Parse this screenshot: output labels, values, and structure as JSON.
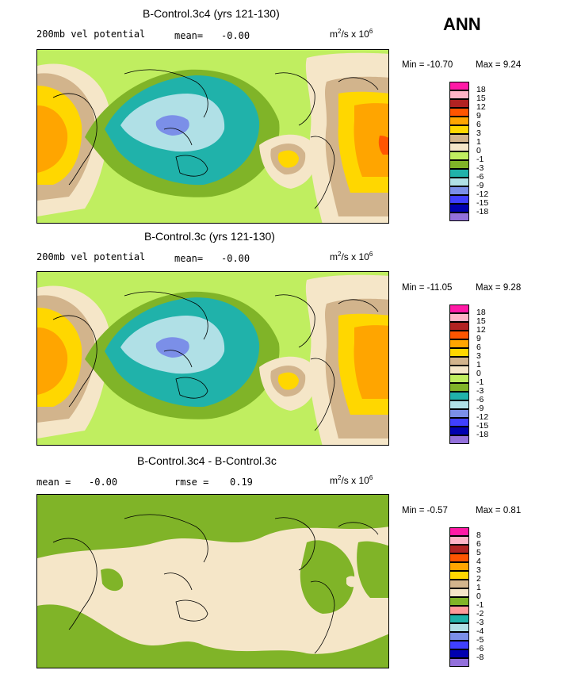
{
  "season": "ANN",
  "panels": [
    {
      "id": "p1",
      "title": "B-Control.3c4 (yrs 121-130)",
      "left_label": "200mb vel potential",
      "stat_label": "mean=",
      "stat_value": "-0.00",
      "stat2_label": "",
      "stat2_value": "",
      "units": "m",
      "units_sup": "2",
      "units_mid": "/s x 10",
      "units_sup2": "6",
      "min_text": "Min = -10.70",
      "max_text": "Max =   9.24",
      "colorbar": {
        "labels": [
          "18",
          "15",
          "12",
          "9",
          "6",
          "3",
          "1",
          "0",
          "-1",
          "-3",
          "-6",
          "-9",
          "-12",
          "-15",
          "-18"
        ],
        "colors": [
          "#ff1aa6",
          "#ffb3c6",
          "#b22222",
          "#ff5500",
          "#ffa500",
          "#ffd700",
          "#d2b48c",
          "#f5e6c8",
          "#c0ee60",
          "#80b428",
          "#20b2aa",
          "#b0e0e6",
          "#7b8fe8",
          "#4040ff",
          "#0000b0",
          "#9370db"
        ]
      }
    },
    {
      "id": "p2",
      "title": "B-Control.3c (yrs 121-130)",
      "left_label": "200mb vel potential",
      "stat_label": "mean=",
      "stat_value": "-0.00",
      "stat2_label": "",
      "stat2_value": "",
      "units": "m",
      "units_sup": "2",
      "units_mid": "/s x 10",
      "units_sup2": "6",
      "min_text": "Min = -11.05",
      "max_text": "Max =   9.28",
      "colorbar": {
        "labels": [
          "18",
          "15",
          "12",
          "9",
          "6",
          "3",
          "1",
          "0",
          "-1",
          "-3",
          "-6",
          "-9",
          "-12",
          "-15",
          "-18"
        ],
        "colors": [
          "#ff1aa6",
          "#ffb3c6",
          "#b22222",
          "#ff5500",
          "#ffa500",
          "#ffd700",
          "#d2b48c",
          "#f5e6c8",
          "#c0ee60",
          "#80b428",
          "#20b2aa",
          "#b0e0e6",
          "#7b8fe8",
          "#4040ff",
          "#0000b0",
          "#9370db"
        ]
      }
    },
    {
      "id": "p3",
      "title": "B-Control.3c4 - B-Control.3c",
      "left_label": "",
      "stat_label": "mean =",
      "stat_value": "-0.00",
      "stat2_label": "rmse =",
      "stat2_value": "0.19",
      "units": "m",
      "units_sup": "2",
      "units_mid": "/s x 10",
      "units_sup2": "6",
      "min_text": "Min = -0.57",
      "max_text": "Max =   0.81",
      "colorbar": {
        "labels": [
          "8",
          "6",
          "5",
          "4",
          "3",
          "2",
          "1",
          "0",
          "-1",
          "-2",
          "-3",
          "-4",
          "-5",
          "-6",
          "-8"
        ],
        "colors": [
          "#ff1aa6",
          "#ffb3c6",
          "#b22222",
          "#ff5500",
          "#ffa500",
          "#ffd700",
          "#d2b48c",
          "#f5e6c8",
          "#80b428",
          "#ff9999",
          "#20b2aa",
          "#b0e0e6",
          "#7b8fe8",
          "#4040ff",
          "#0000b0",
          "#9370db"
        ]
      }
    }
  ],
  "chart_data": {
    "type": "heatmap",
    "season": "ANN",
    "maps": [
      {
        "title": "B-Control.3c4 (yrs 121-130)",
        "field": "200mb vel potential",
        "units": "m^2/s x 10^6",
        "mean": -0.0,
        "min": -10.7,
        "max": 9.24,
        "levels": [
          -18,
          -15,
          -12,
          -9,
          -6,
          -3,
          -1,
          0,
          1,
          3,
          6,
          9,
          12,
          15,
          18
        ]
      },
      {
        "title": "B-Control.3c (yrs 121-130)",
        "field": "200mb vel potential",
        "units": "m^2/s x 10^6",
        "mean": -0.0,
        "min": -11.05,
        "max": 9.28,
        "levels": [
          -18,
          -15,
          -12,
          -9,
          -6,
          -3,
          -1,
          0,
          1,
          3,
          6,
          9,
          12,
          15,
          18
        ]
      },
      {
        "title": "B-Control.3c4 - B-Control.3c",
        "units": "m^2/s x 10^6",
        "mean": -0.0,
        "rmse": 0.19,
        "min": -0.57,
        "max": 0.81,
        "levels": [
          -8,
          -6,
          -5,
          -4,
          -3,
          -2,
          -1,
          0,
          1,
          2,
          3,
          4,
          5,
          6,
          8
        ]
      }
    ]
  }
}
